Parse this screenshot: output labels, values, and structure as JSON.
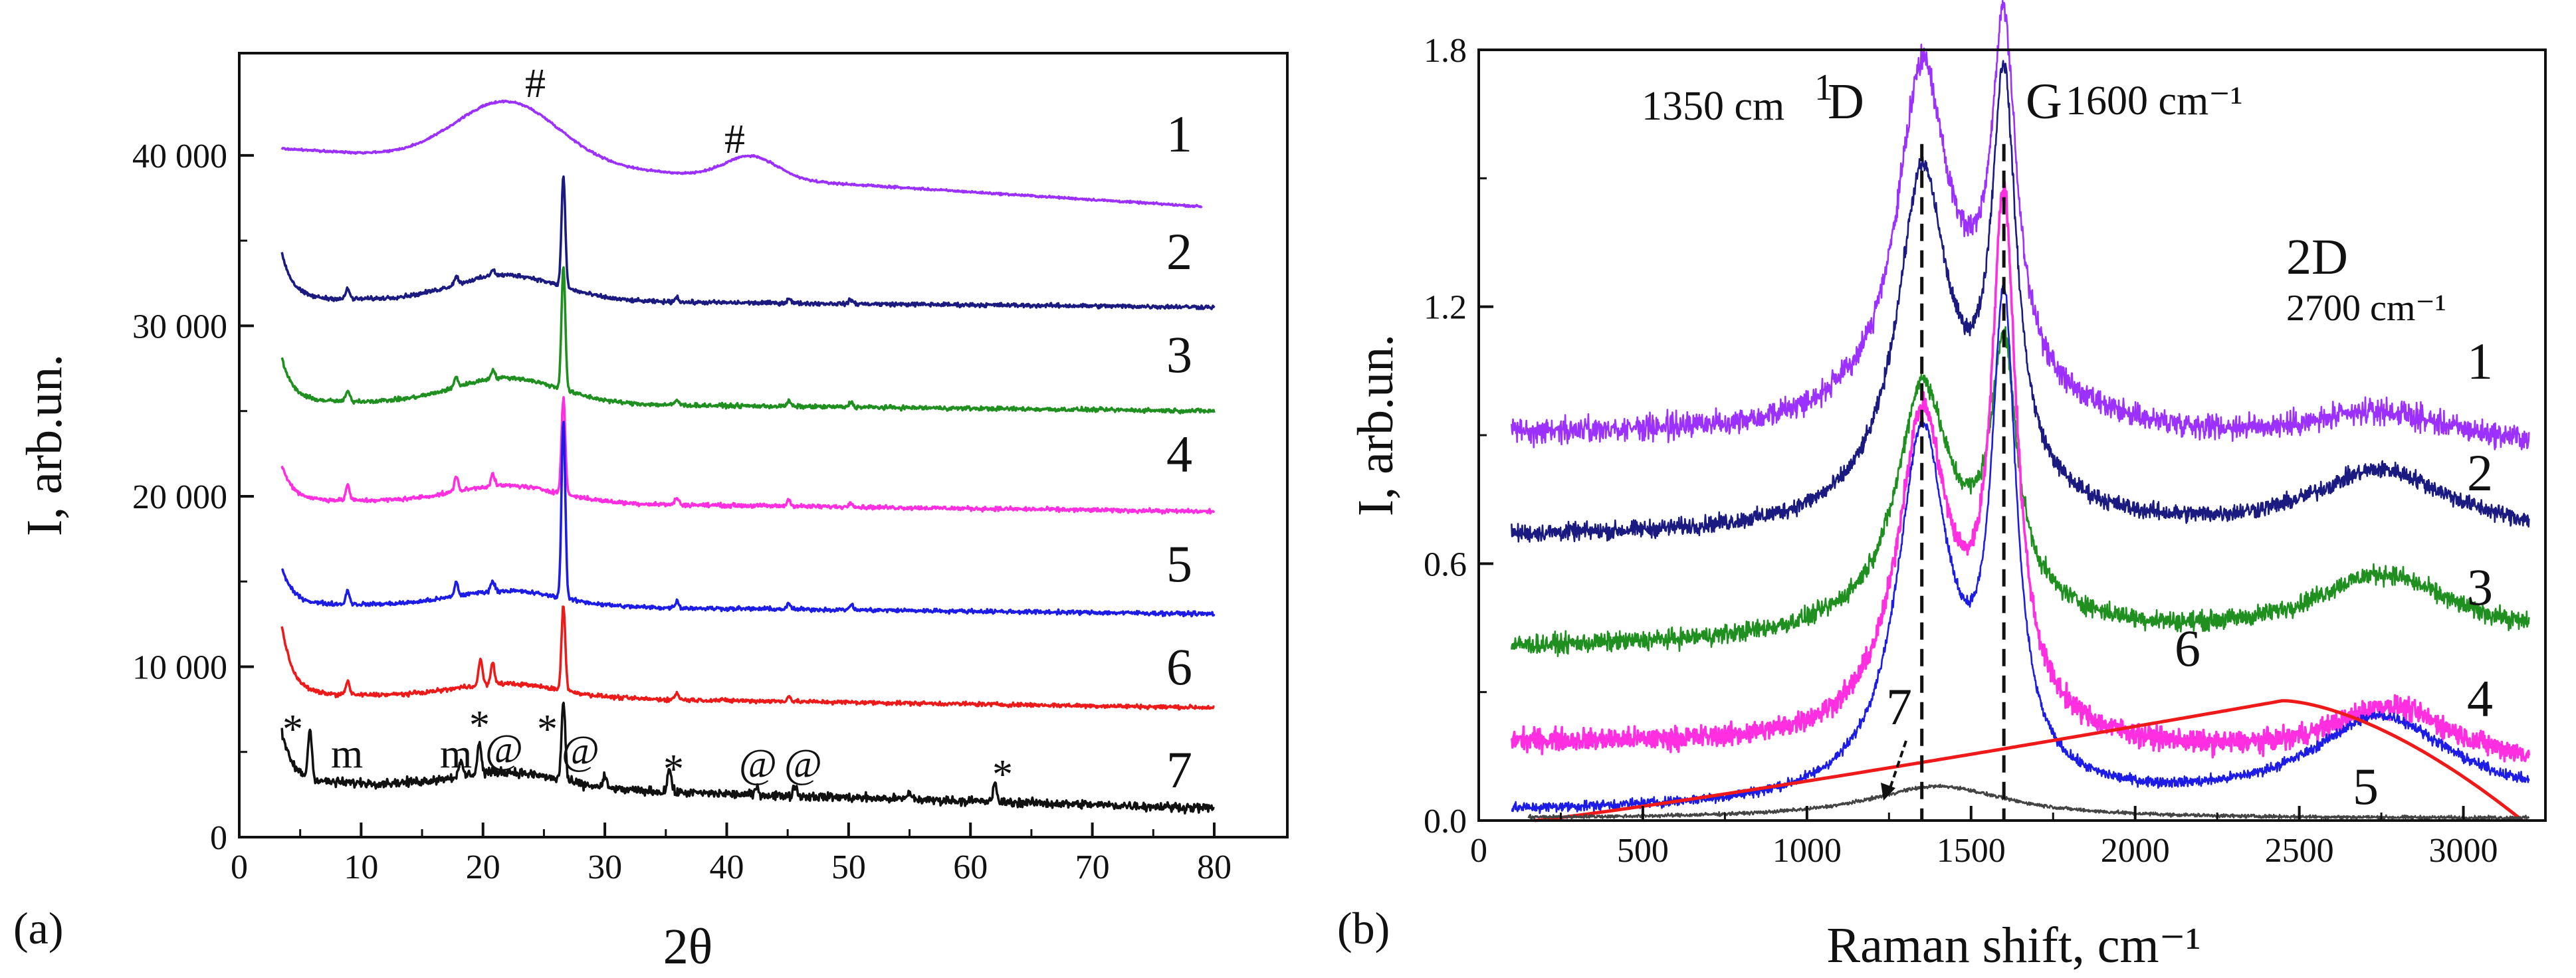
{
  "chart_data": [
    {
      "type": "line",
      "panel_label": "(a)",
      "xlabel": "2θ",
      "ylabel": "I, arb.un.",
      "xlim": [
        0,
        86
      ],
      "ylim": [
        0,
        46000
      ],
      "x_ticks": [
        0,
        10,
        20,
        30,
        40,
        50,
        60,
        70,
        80
      ],
      "y_ticks": [
        0,
        10000,
        20000,
        30000,
        40000
      ],
      "y_tick_labels": [
        "0",
        "10 000",
        "20 000",
        "30 000",
        "40 000"
      ],
      "grid": false,
      "legend": "none",
      "series": [
        {
          "name": "1",
          "color": "#9B30FF",
          "start": 3.5,
          "end": 79,
          "baseline": 40400,
          "endbaseline": 37000,
          "humps": [
            [
              22,
              3600,
              6
            ],
            [
              42,
              1300,
              3
            ]
          ],
          "peaks": [],
          "noise": 60
        },
        {
          "name": "2",
          "color": "#1A1A80",
          "start": 3.5,
          "end": 80,
          "baseline": 31600,
          "endbaseline": 31100,
          "humps": [
            [
              22,
              1500,
              6
            ]
          ],
          "peaks": [
            [
              26.6,
              6500
            ],
            [
              8.9,
              600
            ],
            [
              17.8,
              500
            ],
            [
              20.8,
              400
            ],
            [
              35.9,
              300
            ],
            [
              45.1,
              300
            ],
            [
              50.2,
              250
            ]
          ],
          "startrise": 2700,
          "noise": 120
        },
        {
          "name": "3",
          "color": "#1F8F1F",
          "start": 3.5,
          "end": 80,
          "baseline": 25600,
          "endbaseline": 25000,
          "humps": [
            [
              22,
              1500,
              6
            ]
          ],
          "peaks": [
            [
              26.6,
              7300
            ],
            [
              8.9,
              600
            ],
            [
              17.8,
              600
            ],
            [
              20.8,
              500
            ],
            [
              35.9,
              300
            ],
            [
              45.1,
              300
            ],
            [
              50.2,
              300
            ]
          ],
          "startrise": 2500,
          "noise": 120
        },
        {
          "name": "4",
          "color": "#FF2EE0",
          "start": 3.5,
          "end": 80,
          "baseline": 19800,
          "endbaseline": 19100,
          "humps": [
            [
              22,
              1000,
              6
            ]
          ],
          "peaks": [
            [
              26.6,
              5600
            ],
            [
              8.9,
              900
            ],
            [
              17.8,
              900
            ],
            [
              20.8,
              700
            ],
            [
              35.9,
              400
            ],
            [
              45.1,
              400
            ],
            [
              50.2,
              300
            ]
          ],
          "startrise": 2000,
          "noise": 120
        },
        {
          "name": "5",
          "color": "#1C1CE6",
          "start": 3.5,
          "end": 80,
          "baseline": 13700,
          "endbaseline": 13100,
          "humps": [
            [
              22,
              900,
              6
            ]
          ],
          "peaks": [
            [
              26.6,
              10400
            ],
            [
              8.9,
              800
            ],
            [
              17.8,
              800
            ],
            [
              20.8,
              600
            ],
            [
              35.9,
              400
            ],
            [
              45.1,
              300
            ],
            [
              50.2,
              300
            ]
          ],
          "startrise": 2100,
          "noise": 120
        },
        {
          "name": "6",
          "color": "#EE1A1A",
          "start": 3.5,
          "end": 80,
          "baseline": 8400,
          "endbaseline": 7600,
          "humps": [
            [
              22,
              800,
              6
            ]
          ],
          "peaks": [
            [
              26.6,
              5000
            ],
            [
              8.9,
              800
            ],
            [
              19.8,
              1500
            ],
            [
              20.8,
              1200
            ],
            [
              35.9,
              400
            ],
            [
              45.1,
              300
            ]
          ],
          "startrise": 4000,
          "noise": 120
        },
        {
          "name": "7",
          "color": "#111111",
          "start": 3.5,
          "end": 80,
          "baseline": 3300,
          "endbaseline": 1700,
          "humps": [
            [
              22,
              900,
              6
            ]
          ],
          "peaks": [
            [
              5.8,
              2900
            ],
            [
              26.6,
              4600
            ],
            [
              19.7,
              1800
            ],
            [
              18.2,
              800
            ],
            [
              35.3,
              1400
            ],
            [
              62,
              1000
            ],
            [
              30,
              600
            ],
            [
              45.6,
              600
            ],
            [
              42.5,
              400
            ],
            [
              55,
              400
            ]
          ],
          "startrise": 2800,
          "noise": 250
        }
      ],
      "curve_labels": [
        "1",
        "2",
        "3",
        "4",
        "5",
        "6",
        "7"
      ],
      "annotations": [
        "#",
        "#",
        "*",
        "m",
        "m",
        "*",
        "@",
        "*",
        "@",
        "*",
        "@",
        "@",
        "*"
      ]
    },
    {
      "type": "line",
      "panel_label": "(b)",
      "xlabel": "Raman shift, cm⁻¹",
      "ylabel": "I, arb.un.",
      "xlim": [
        0,
        3250
      ],
      "ylim": [
        0,
        1.8
      ],
      "x_ticks": [
        0,
        500,
        1000,
        1500,
        2000,
        2500,
        3000
      ],
      "y_ticks": [
        0.0,
        0.6,
        1.2,
        1.8
      ],
      "y_tick_labels": [
        "0.0",
        "0.6",
        "1.2",
        "1.8"
      ],
      "grid": false,
      "legend": "none",
      "series": [
        {
          "name": "1",
          "color": "#9B30FF",
          "start": 100,
          "end": 3200,
          "baseline": 0.9,
          "endbaseline": 0.87,
          "bands": [
            [
              1350,
              0.72,
              90
            ],
            [
              1600,
              0.78,
              45
            ],
            [
              1480,
              0.18,
              250
            ],
            [
              2750,
              0.07,
              250
            ]
          ],
          "noise": 0.028
        },
        {
          "name": "2",
          "color": "#1A1A80",
          "start": 100,
          "end": 3200,
          "baseline": 0.66,
          "endbaseline": 0.66,
          "bands": [
            [
              1350,
              0.72,
              90
            ],
            [
              1600,
              0.9,
              45
            ],
            [
              1480,
              0.15,
              250
            ],
            [
              2750,
              0.15,
              260
            ]
          ],
          "noise": 0.02
        },
        {
          "name": "3",
          "color": "#1F8F1F",
          "start": 100,
          "end": 3200,
          "baseline": 0.4,
          "endbaseline": 0.42,
          "bands": [
            [
              1350,
              0.48,
              90
            ],
            [
              1600,
              0.55,
              45
            ],
            [
              1480,
              0.15,
              260
            ],
            [
              2750,
              0.15,
              260
            ]
          ],
          "noise": 0.022
        },
        {
          "name": "4",
          "color": "#FF2EE0",
          "start": 100,
          "end": 3200,
          "baseline": 0.18,
          "endbaseline": 0.12,
          "bands": [
            [
              1350,
              0.68,
              90
            ],
            [
              1600,
              1.15,
              45
            ],
            [
              1480,
              0.12,
              250
            ],
            [
              2780,
              0.13,
              230
            ]
          ],
          "noise": 0.025
        },
        {
          "name": "5",
          "color": "#1C1CE6",
          "start": 100,
          "end": 3200,
          "baseline": 0.02,
          "endbaseline": 0.04,
          "bands": [
            [
              1350,
              0.78,
              90
            ],
            [
              1600,
              1.05,
              45
            ],
            [
              1450,
              0.1,
              220
            ],
            [
              2750,
              0.2,
              260
            ]
          ],
          "noise": 0.012
        },
        {
          "name": "6",
          "color": "#EE1A1A",
          "start": 170,
          "end": 3180,
          "peak": 2450,
          "peakval": 0.28,
          "noise": 0
        },
        {
          "name": "7",
          "color": "#444444",
          "start": 150,
          "end": 3200,
          "bands": [
            [
              1400,
              0.075,
              260
            ]
          ],
          "baseline": 0.005,
          "endbaseline": 0.005,
          "noise": 0.004
        }
      ],
      "curve_labels": [
        "1",
        "2",
        "3",
        "4",
        "5",
        "6",
        "7"
      ],
      "band_labels": {
        "d_wavenumber": "1350 cm",
        "d_exponent": "1",
        "d_name": "D",
        "g_name": "G",
        "g_wavenumber": "1600 cm⁻¹",
        "twod_name": "2D",
        "twod_wavenumber": "2700 cm⁻¹"
      },
      "reference_lines": [
        1350,
        1600
      ]
    }
  ]
}
